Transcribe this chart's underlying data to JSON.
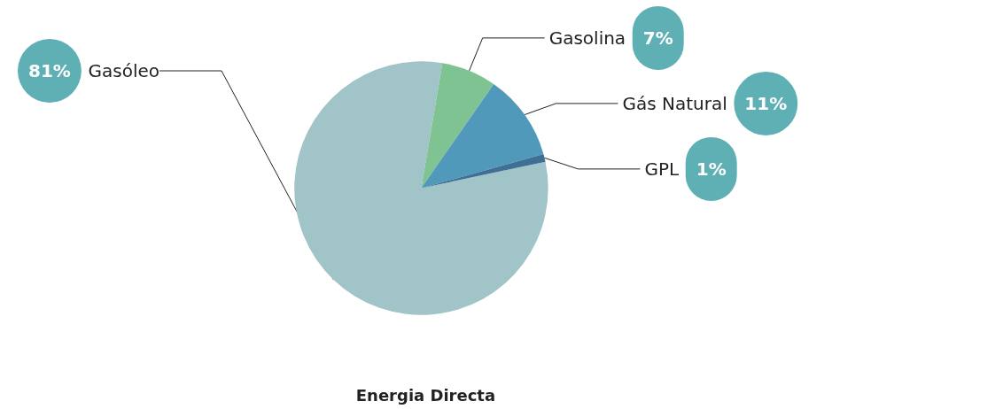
{
  "chart_data": {
    "type": "pie",
    "title": "Energia Directa",
    "categories": [
      "Gasóleo",
      "Gasolina",
      "Gás Natural",
      "GPL"
    ],
    "values": [
      81,
      7,
      11,
      1
    ],
    "colors": [
      "#a0c4c8",
      "#80c392",
      "#5099bb",
      "#3f6f94"
    ],
    "value_labels": [
      "81%",
      "7%",
      "11%",
      "1%"
    ],
    "legend": false
  }
}
